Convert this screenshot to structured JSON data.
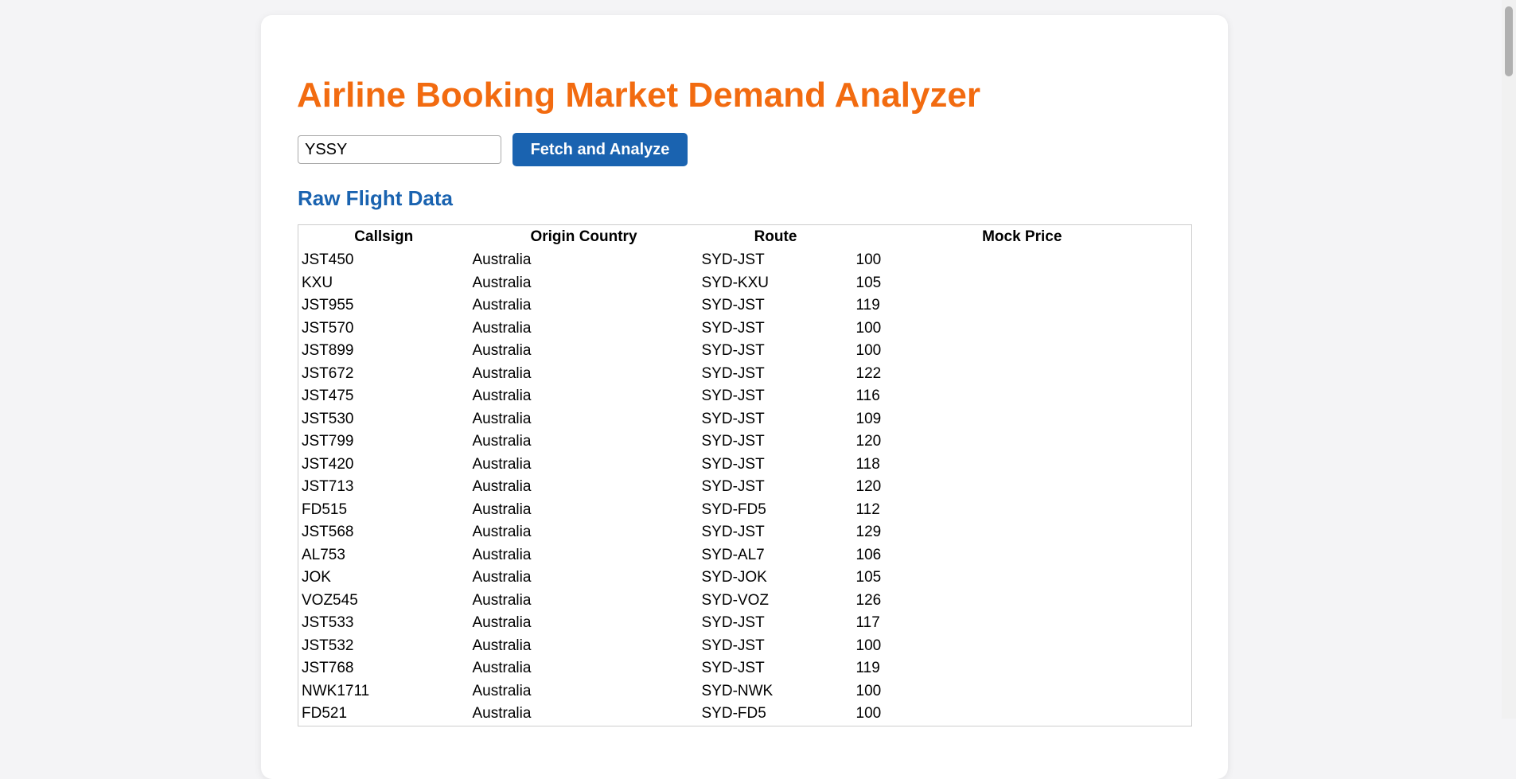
{
  "header": {
    "title": "Airline Booking Market Demand Analyzer"
  },
  "form": {
    "input_value": "YSSY",
    "button": "Fetch and Analyze"
  },
  "section": {
    "title": "Raw Flight Data"
  },
  "table": {
    "columns": [
      "Callsign",
      "Origin Country",
      "Route",
      "Mock Price"
    ],
    "rows": [
      [
        "JST450",
        "Australia",
        "SYD-JST",
        100
      ],
      [
        "KXU",
        "Australia",
        "SYD-KXU",
        105
      ],
      [
        "JST955",
        "Australia",
        "SYD-JST",
        119
      ],
      [
        "JST570",
        "Australia",
        "SYD-JST",
        100
      ],
      [
        "JST899",
        "Australia",
        "SYD-JST",
        100
      ],
      [
        "JST672",
        "Australia",
        "SYD-JST",
        122
      ],
      [
        "JST475",
        "Australia",
        "SYD-JST",
        116
      ],
      [
        "JST530",
        "Australia",
        "SYD-JST",
        109
      ],
      [
        "JST799",
        "Australia",
        "SYD-JST",
        120
      ],
      [
        "JST420",
        "Australia",
        "SYD-JST",
        118
      ],
      [
        "JST713",
        "Australia",
        "SYD-JST",
        120
      ],
      [
        "FD515",
        "Australia",
        "SYD-FD5",
        112
      ],
      [
        "JST568",
        "Australia",
        "SYD-JST",
        129
      ],
      [
        "AL753",
        "Australia",
        "SYD-AL7",
        106
      ],
      [
        "JOK",
        "Australia",
        "SYD-JOK",
        105
      ],
      [
        "VOZ545",
        "Australia",
        "SYD-VOZ",
        126
      ],
      [
        "JST533",
        "Australia",
        "SYD-JST",
        117
      ],
      [
        "JST532",
        "Australia",
        "SYD-JST",
        100
      ],
      [
        "JST768",
        "Australia",
        "SYD-JST",
        119
      ],
      [
        "NWK1711",
        "Australia",
        "SYD-NWK",
        100
      ],
      [
        "FD521",
        "Australia",
        "SYD-FD5",
        100
      ]
    ]
  }
}
